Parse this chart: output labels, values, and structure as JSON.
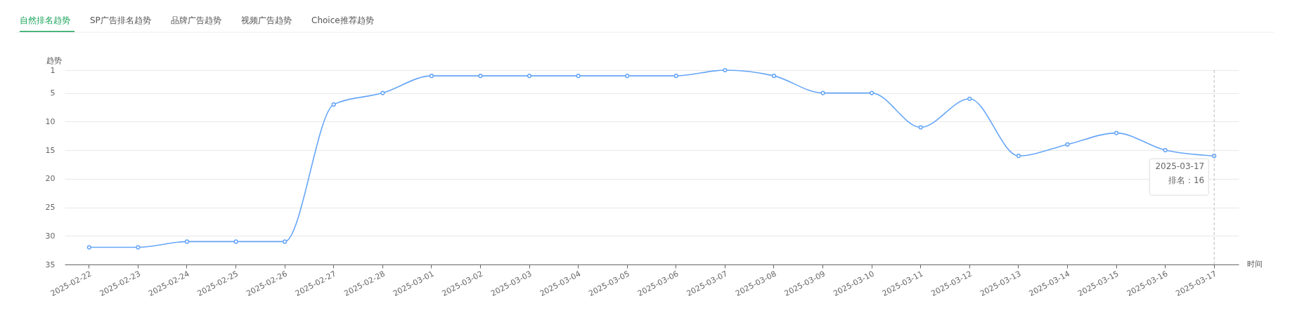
{
  "chart_data": {
    "type": "line",
    "ylabel": "趋势",
    "xlabel": "时间",
    "categories": [
      "2025-02-22",
      "2025-02-23",
      "2025-02-24",
      "2025-02-25",
      "2025-02-26",
      "2025-02-27",
      "2025-02-28",
      "2025-03-01",
      "2025-03-02",
      "2025-03-03",
      "2025-03-04",
      "2025-03-05",
      "2025-03-06",
      "2025-03-07",
      "2025-03-08",
      "2025-03-09",
      "2025-03-10",
      "2025-03-11",
      "2025-03-12",
      "2025-03-13",
      "2025-03-14",
      "2025-03-15",
      "2025-03-16",
      "2025-03-17"
    ],
    "series": [
      {
        "color": "#66a6f7",
        "values": [
          32,
          32,
          31,
          31,
          31,
          7,
          5,
          2,
          2,
          2,
          2,
          2,
          2,
          1,
          2,
          5,
          5,
          11,
          6,
          16,
          14,
          12,
          15,
          16
        ]
      }
    ],
    "ylim": [
      35,
      1
    ],
    "yticks": [
      1,
      5,
      10,
      15,
      20,
      25,
      30,
      35
    ],
    "grid": "y",
    "marker": "circle",
    "ref_lines": [
      {
        "axis": "x",
        "value": "2025-03-17",
        "color": "#bbbbbb",
        "line_style": "dashed"
      }
    ],
    "annotations": [
      "自然排名趋势",
      "SP广告排名趋势",
      "品牌广告趋势",
      "视频广告趋势",
      "Choice推荐趋势",
      {
        "text": "2025-03-17\n排名：16",
        "x": "2025-03-17",
        "y": 16
      }
    ]
  }
}
